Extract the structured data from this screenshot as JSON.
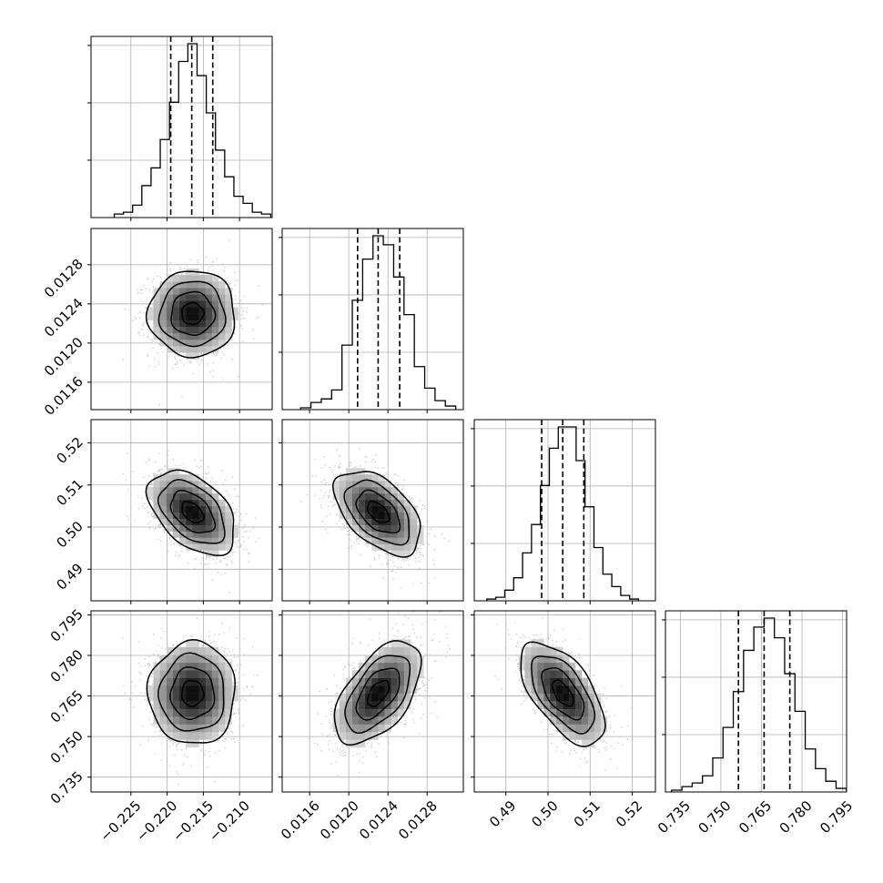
{
  "chart_data": {
    "type": "corner",
    "title": "",
    "grid": true,
    "colors": {
      "hist": "#000000",
      "contour": "#000000",
      "density": "#000000",
      "samples": "#bdbdbd",
      "grid": "#b0b0b0"
    },
    "parameters": [
      {
        "range": [
          -0.2305,
          -0.2055
        ],
        "ticks": [
          -0.225,
          -0.22,
          -0.215,
          -0.21
        ],
        "tick_labels": [
          "−0.225",
          "−0.220",
          "−0.215",
          "−0.210"
        ],
        "mean": -0.2165,
        "sigma": 0.003,
        "quantiles": [
          -0.2195,
          -0.2166,
          -0.2137
        ],
        "hist": [
          0.02,
          0.03,
          0.07,
          0.18,
          0.28,
          0.44,
          0.65,
          0.88,
          0.98,
          0.8,
          0.59,
          0.38,
          0.23,
          0.12,
          0.08,
          0.03,
          0.02
        ]
      },
      {
        "range": [
          0.01132,
          0.01317
        ],
        "ticks": [
          0.0116,
          0.012,
          0.0124,
          0.0128
        ],
        "tick_labels": [
          "0.0116",
          "0.0120",
          "0.0124",
          "0.0128"
        ],
        "mean": 0.0123,
        "sigma": 0.00022,
        "quantiles": [
          0.01209,
          0.0123,
          0.01252
        ],
        "hist": [
          0.01,
          0.04,
          0.06,
          0.11,
          0.36,
          0.61,
          0.84,
          0.97,
          0.92,
          0.74,
          0.53,
          0.24,
          0.12,
          0.05,
          0.02
        ]
      },
      {
        "range": [
          0.4825,
          0.5255
        ],
        "ticks": [
          0.49,
          0.5,
          0.51,
          0.52
        ],
        "tick_labels": [
          "0.49",
          "0.50",
          "0.51",
          "0.52"
        ],
        "mean": 0.5035,
        "sigma": 0.005,
        "quantiles": [
          0.4985,
          0.5035,
          0.5085
        ],
        "hist": [
          0.01,
          0.02,
          0.06,
          0.13,
          0.27,
          0.43,
          0.65,
          0.86,
          0.98,
          0.98,
          0.79,
          0.53,
          0.3,
          0.15,
          0.08,
          0.03,
          0.01
        ]
      },
      {
        "range": [
          0.7295,
          0.7965
        ],
        "ticks": [
          0.735,
          0.75,
          0.765,
          0.78,
          0.795
        ],
        "tick_labels": [
          "0.735",
          "0.750",
          "0.765",
          "0.780",
          "0.795"
        ],
        "mean": 0.766,
        "sigma": 0.0095,
        "quantiles": [
          0.7565,
          0.766,
          0.7755
        ],
        "hist": [
          0.01,
          0.03,
          0.05,
          0.09,
          0.19,
          0.36,
          0.56,
          0.79,
          0.92,
          0.97,
          0.86,
          0.66,
          0.45,
          0.24,
          0.13,
          0.06,
          0.02,
          0.01
        ]
      }
    ],
    "correlations": [
      {
        "row": 1,
        "col": 0,
        "rho": 0.0
      },
      {
        "row": 2,
        "col": 0,
        "rho": -0.45
      },
      {
        "row": 2,
        "col": 1,
        "rho": -0.5
      },
      {
        "row": 3,
        "col": 0,
        "rho": 0.0
      },
      {
        "row": 3,
        "col": 1,
        "rho": 0.55
      },
      {
        "row": 3,
        "col": 2,
        "rho": -0.6
      }
    ],
    "contour_levels_sigma": [
      0.5,
      1.0,
      1.5,
      2.0
    ]
  }
}
